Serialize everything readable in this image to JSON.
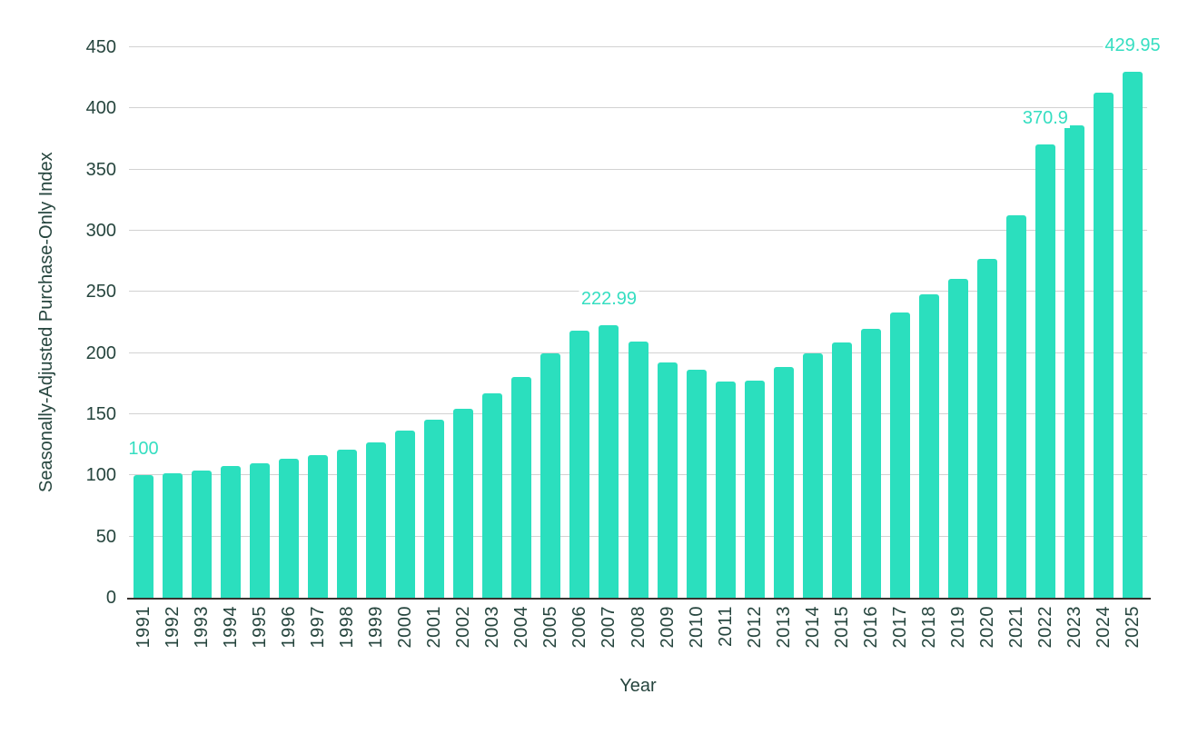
{
  "chart_data": {
    "type": "bar",
    "title": "",
    "xlabel": "Year",
    "ylabel": "Seasonally-Adjusted Purchase-Only Index",
    "categories": [
      "1991",
      "1992",
      "1993",
      "1994",
      "1995",
      "1996",
      "1997",
      "1998",
      "1999",
      "2000",
      "2001",
      "2002",
      "2003",
      "2004",
      "2005",
      "2006",
      "2007",
      "2008",
      "2009",
      "2010",
      "2011",
      "2012",
      "2013",
      "2014",
      "2015",
      "2016",
      "2017",
      "2018",
      "2019",
      "2020",
      "2021",
      "2022",
      "2023",
      "2024",
      "2025"
    ],
    "values": [
      100,
      102.1,
      103.7,
      107.5,
      109.9,
      113.4,
      116.5,
      121,
      127,
      136.4,
      145.5,
      154.5,
      167.3,
      180.6,
      200,
      218.6,
      222.99,
      209.7,
      192,
      186.5,
      176.7,
      177.5,
      188.4,
      199.4,
      208.8,
      220,
      232.9,
      248.2,
      261,
      277.3,
      312.5,
      370.9,
      386.5,
      412.6,
      429.95
    ],
    "point_labels": [
      {
        "category": "1991",
        "text": "100"
      },
      {
        "category": "2007",
        "text": "222.99"
      },
      {
        "category": "2022",
        "text": "370.9"
      },
      {
        "category": "2025",
        "text": "429.95"
      }
    ],
    "ylim": [
      0,
      450
    ],
    "yticks": [
      0,
      50,
      100,
      150,
      200,
      250,
      300,
      350,
      400,
      450
    ],
    "grid": "horizontal",
    "legend": "none",
    "bar_color": "#2bdfbe",
    "point_label_color": "#35dec1",
    "axis_text_color": "#26453e",
    "gridline_color": "#d2d2d2",
    "axis_line_color": "#37322e",
    "background_color": "#ffffff"
  }
}
